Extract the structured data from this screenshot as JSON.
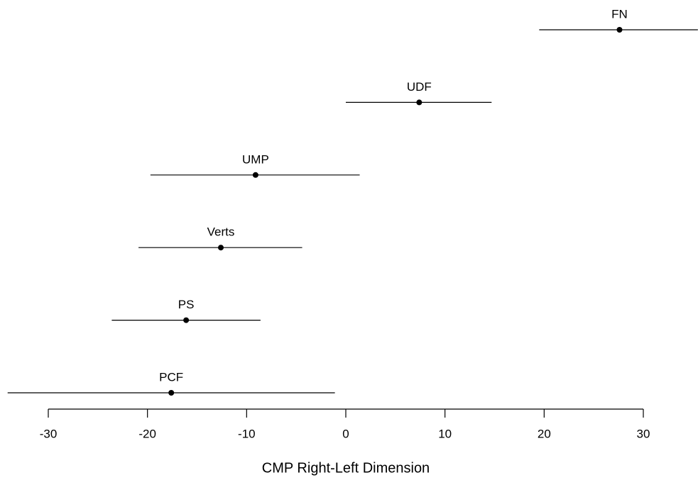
{
  "chart_data": {
    "type": "dotplot",
    "xlabel": "CMP Right-Left Dimension",
    "categories": [
      "FN",
      "UDF",
      "UMP",
      "Verts",
      "PS",
      "PCF"
    ],
    "values": [
      27.6,
      7.4,
      -9.1,
      -12.6,
      -16.1,
      -17.6
    ],
    "lower": [
      19.5,
      0.0,
      -19.7,
      -20.9,
      -23.6,
      -34.1
    ],
    "upper": [
      35.5,
      14.7,
      1.4,
      -4.4,
      -8.6,
      -1.1
    ],
    "color": "#000000",
    "xlim": [
      -30,
      30
    ],
    "xticks": [
      -30,
      -20,
      -10,
      0,
      10,
      20,
      30
    ]
  }
}
